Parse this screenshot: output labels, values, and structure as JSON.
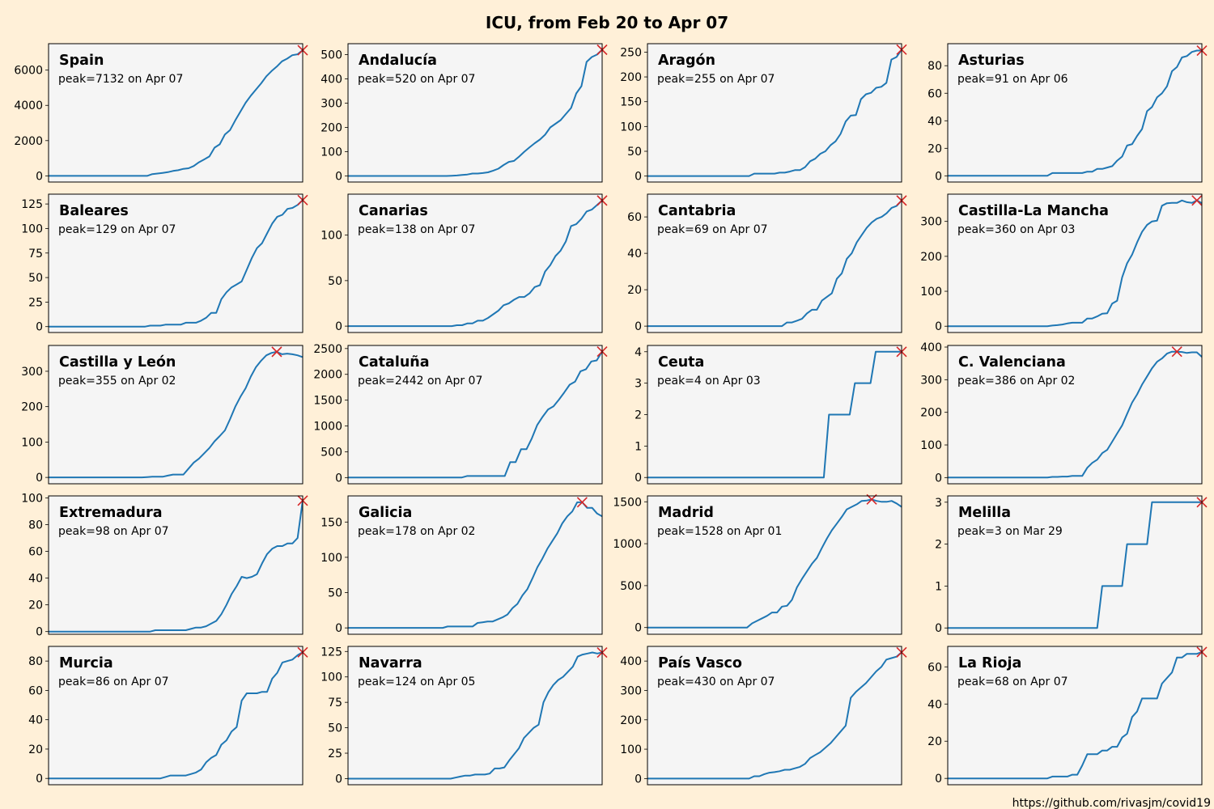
{
  "title": "ICU, from Feb 20 to Apr 07",
  "credit": "https://github.com/rivasjm/covid19",
  "colors": {
    "background": "#fff0d8",
    "axes_bg": "#f5f5f5",
    "line": "#1f77b4",
    "peak_marker": "#d62728"
  },
  "chart_data": [
    {
      "type": "line",
      "region": "Spain",
      "peak_label": "peak=7132 on Apr 07",
      "ylim": [
        -350,
        7500
      ],
      "yticks": [
        0,
        2000,
        4000,
        6000
      ],
      "values": [
        0,
        0,
        0,
        0,
        0,
        0,
        0,
        0,
        0,
        0,
        0,
        0,
        0,
        0,
        0,
        0,
        0,
        0,
        0,
        0,
        100,
        130,
        170,
        210,
        280,
        320,
        400,
        430,
        560,
        770,
        930,
        1100,
        1600,
        1790,
        2350,
        2600,
        3150,
        3650,
        4150,
        4550,
        4900,
        5250,
        5650,
        5950,
        6200,
        6500,
        6650,
        6850,
        6900,
        7132
      ]
    },
    {
      "type": "line",
      "region": "Andalucía",
      "peak_label": "peak=520 on Apr 07",
      "ylim": [
        -25,
        545
      ],
      "yticks": [
        0,
        100,
        200,
        300,
        400,
        500
      ],
      "values": [
        0,
        0,
        0,
        0,
        0,
        0,
        0,
        0,
        0,
        0,
        0,
        0,
        0,
        0,
        0,
        0,
        0,
        0,
        0,
        0,
        1,
        2,
        4,
        6,
        10,
        10,
        12,
        15,
        22,
        30,
        45,
        58,
        62,
        80,
        100,
        118,
        135,
        150,
        170,
        200,
        215,
        230,
        255,
        280,
        340,
        370,
        470,
        490,
        500,
        520
      ]
    },
    {
      "type": "line",
      "region": "Aragón",
      "peak_label": "peak=255 on Apr 07",
      "ylim": [
        -12,
        267
      ],
      "yticks": [
        0,
        50,
        100,
        150,
        200,
        250
      ],
      "values": [
        0,
        0,
        0,
        0,
        0,
        0,
        0,
        0,
        0,
        0,
        0,
        0,
        0,
        0,
        0,
        0,
        0,
        0,
        0,
        0,
        0,
        5,
        5,
        5,
        5,
        5,
        7,
        7,
        9,
        12,
        12,
        18,
        30,
        35,
        45,
        50,
        62,
        70,
        85,
        110,
        122,
        123,
        155,
        165,
        168,
        178,
        180,
        188,
        235,
        240,
        255
      ]
    },
    {
      "type": "line",
      "region": "Asturias",
      "peak_label": "peak=91 on Apr 06",
      "ylim": [
        -4.5,
        96
      ],
      "yticks": [
        0,
        20,
        40,
        60,
        80
      ],
      "values": [
        0,
        0,
        0,
        0,
        0,
        0,
        0,
        0,
        0,
        0,
        0,
        0,
        0,
        0,
        0,
        0,
        0,
        0,
        0,
        0,
        0,
        2,
        2,
        2,
        2,
        2,
        2,
        2,
        3,
        3,
        5,
        5,
        6,
        7,
        11,
        14,
        22,
        23,
        29,
        34,
        47,
        50,
        57,
        60,
        65,
        76,
        79,
        86,
        87,
        90,
        91,
        91
      ]
    },
    {
      "type": "line",
      "region": "Baleares",
      "peak_label": "peak=129 on Apr 07",
      "ylim": [
        -6,
        135
      ],
      "yticks": [
        0,
        25,
        50,
        75,
        100,
        125
      ],
      "values": [
        0,
        0,
        0,
        0,
        0,
        0,
        0,
        0,
        0,
        0,
        0,
        0,
        0,
        0,
        0,
        0,
        0,
        0,
        0,
        0,
        1,
        1,
        1,
        2,
        2,
        2,
        2,
        4,
        4,
        4,
        6,
        9,
        14,
        14,
        28,
        35,
        40,
        43,
        46,
        58,
        70,
        80,
        85,
        95,
        105,
        112,
        114,
        120,
        121,
        124,
        129
      ]
    },
    {
      "type": "line",
      "region": "Canarias",
      "peak_label": "peak=138 on Apr 07",
      "ylim": [
        -7,
        145
      ],
      "yticks": [
        0,
        50,
        100
      ],
      "values": [
        0,
        0,
        0,
        0,
        0,
        0,
        0,
        0,
        0,
        0,
        0,
        0,
        0,
        0,
        0,
        0,
        0,
        0,
        0,
        0,
        0,
        1,
        1,
        3,
        3,
        6,
        6,
        9,
        13,
        17,
        23,
        25,
        29,
        32,
        32,
        36,
        43,
        45,
        60,
        67,
        77,
        83,
        93,
        110,
        112,
        118,
        126,
        128,
        133,
        138
      ]
    },
    {
      "type": "line",
      "region": "Cantabria",
      "peak_label": "peak=69 on Apr 07",
      "ylim": [
        -3.5,
        72.5
      ],
      "yticks": [
        0,
        20,
        40,
        60
      ],
      "values": [
        0,
        0,
        0,
        0,
        0,
        0,
        0,
        0,
        0,
        0,
        0,
        0,
        0,
        0,
        0,
        0,
        0,
        0,
        0,
        0,
        0,
        0,
        0,
        0,
        0,
        0,
        0,
        0,
        2,
        2,
        3,
        4,
        7,
        9,
        9,
        14,
        16,
        18,
        26,
        29,
        37,
        40,
        46,
        50,
        54,
        57,
        59,
        60,
        62,
        65,
        66,
        69
      ]
    },
    {
      "type": "line",
      "region": "Castilla-La Mancha",
      "peak_label": "peak=360 on Apr 03",
      "ylim": [
        -18,
        378
      ],
      "yticks": [
        0,
        100,
        200,
        300
      ],
      "values": [
        0,
        0,
        0,
        0,
        0,
        0,
        0,
        0,
        0,
        0,
        0,
        0,
        0,
        0,
        0,
        0,
        0,
        0,
        0,
        0,
        0,
        2,
        3,
        5,
        8,
        10,
        10,
        10,
        22,
        22,
        28,
        36,
        37,
        65,
        73,
        140,
        180,
        205,
        240,
        270,
        290,
        300,
        302,
        345,
        352,
        353,
        353,
        360,
        355,
        353,
        360,
        352
      ]
    },
    {
      "type": "line",
      "region": "Castilla y León",
      "peak_label": "peak=355 on Apr 02",
      "ylim": [
        -18,
        373
      ],
      "yticks": [
        0,
        100,
        200,
        300
      ],
      "values": [
        0,
        0,
        0,
        0,
        0,
        0,
        0,
        0,
        0,
        0,
        0,
        0,
        0,
        0,
        0,
        0,
        0,
        0,
        0,
        1,
        2,
        2,
        2,
        5,
        8,
        8,
        8,
        25,
        42,
        53,
        68,
        83,
        102,
        117,
        133,
        165,
        200,
        228,
        252,
        285,
        312,
        330,
        345,
        352,
        355,
        348,
        350,
        348,
        345,
        340
      ]
    },
    {
      "type": "line",
      "region": "Cataluña",
      "peak_label": "peak=2442 on Apr 07",
      "ylim": [
        -120,
        2560
      ],
      "yticks": [
        0,
        500,
        1000,
        1500,
        2000,
        2500
      ],
      "values": [
        0,
        0,
        0,
        0,
        0,
        0,
        0,
        0,
        0,
        0,
        0,
        0,
        0,
        0,
        0,
        0,
        0,
        0,
        0,
        0,
        0,
        0,
        30,
        30,
        30,
        30,
        30,
        30,
        30,
        30,
        300,
        300,
        550,
        550,
        760,
        1020,
        1180,
        1320,
        1380,
        1510,
        1650,
        1800,
        1860,
        2060,
        2100,
        2250,
        2270,
        2442
      ]
    },
    {
      "type": "line",
      "region": "Ceuta",
      "peak_label": "peak=4 on Apr 03",
      "ylim": [
        -0.2,
        4.2
      ],
      "yticks": [
        0,
        1,
        2,
        3,
        4
      ],
      "values": [
        0,
        0,
        0,
        0,
        0,
        0,
        0,
        0,
        0,
        0,
        0,
        0,
        0,
        0,
        0,
        0,
        0,
        0,
        0,
        0,
        0,
        0,
        0,
        0,
        0,
        0,
        0,
        0,
        0,
        0,
        0,
        0,
        0,
        0,
        0,
        2,
        2,
        2,
        2,
        2,
        3,
        3,
        3,
        3,
        4,
        4,
        4,
        4,
        4,
        4
      ]
    },
    {
      "type": "line",
      "region": "C. Valenciana",
      "peak_label": "peak=386 on Apr 02",
      "ylim": [
        -19,
        405
      ],
      "yticks": [
        0,
        100,
        200,
        300,
        400
      ],
      "values": [
        0,
        0,
        0,
        0,
        0,
        0,
        0,
        0,
        0,
        0,
        0,
        0,
        0,
        0,
        0,
        0,
        0,
        0,
        0,
        0,
        0,
        2,
        2,
        3,
        3,
        5,
        5,
        5,
        30,
        45,
        55,
        75,
        85,
        110,
        135,
        160,
        195,
        230,
        255,
        285,
        310,
        335,
        355,
        365,
        380,
        386,
        386,
        385,
        382,
        384,
        384,
        370
      ]
    },
    {
      "type": "line",
      "region": "Extremadura",
      "peak_label": "peak=98 on Apr 07",
      "ylim": [
        -2,
        101.5
      ],
      "yticks": [
        0,
        20,
        40,
        60,
        80,
        100
      ],
      "values": [
        0,
        0,
        0,
        0,
        0,
        0,
        0,
        0,
        0,
        0,
        0,
        0,
        0,
        0,
        0,
        0,
        0,
        0,
        0,
        0,
        0,
        1,
        1,
        1,
        1,
        1,
        1,
        1,
        2,
        3,
        3,
        4,
        6,
        8,
        13,
        20,
        28,
        34,
        41,
        40,
        41,
        43,
        51,
        58,
        62,
        64,
        64,
        66,
        66,
        70,
        98
      ]
    },
    {
      "type": "line",
      "region": "Galicia",
      "peak_label": "peak=178 on Apr 02",
      "ylim": [
        -9,
        187
      ],
      "yticks": [
        0,
        50,
        100,
        150
      ],
      "values": [
        0,
        0,
        0,
        0,
        0,
        0,
        0,
        0,
        0,
        0,
        0,
        0,
        0,
        0,
        0,
        0,
        0,
        0,
        0,
        0,
        2,
        2,
        2,
        2,
        2,
        2,
        7,
        8,
        9,
        9,
        12,
        15,
        19,
        28,
        34,
        46,
        55,
        70,
        86,
        98,
        112,
        123,
        134,
        148,
        158,
        165,
        178,
        178,
        170,
        170,
        162,
        158
      ]
    },
    {
      "type": "line",
      "region": "Madrid",
      "peak_label": "peak=1528 on Apr 01",
      "ylim": [
        -80,
        1570
      ],
      "yticks": [
        0,
        500,
        1000,
        1500
      ],
      "values": [
        0,
        0,
        0,
        0,
        0,
        0,
        0,
        0,
        0,
        0,
        0,
        0,
        0,
        0,
        0,
        0,
        0,
        0,
        0,
        0,
        0,
        50,
        80,
        110,
        140,
        180,
        180,
        250,
        260,
        330,
        480,
        580,
        670,
        760,
        830,
        950,
        1060,
        1160,
        1240,
        1320,
        1410,
        1440,
        1470,
        1510,
        1515,
        1528,
        1510,
        1500,
        1500,
        1510,
        1480,
        1440
      ]
    },
    {
      "type": "line",
      "region": "Melilla",
      "peak_label": "peak=3 on Mar 29",
      "ylim": [
        -0.15,
        3.15
      ],
      "yticks": [
        0,
        1,
        2,
        3
      ],
      "values": [
        0,
        0,
        0,
        0,
        0,
        0,
        0,
        0,
        0,
        0,
        0,
        0,
        0,
        0,
        0,
        0,
        0,
        0,
        0,
        0,
        0,
        0,
        0,
        0,
        0,
        0,
        0,
        0,
        0,
        0,
        0,
        1,
        1,
        1,
        1,
        1,
        2,
        2,
        2,
        2,
        2,
        3,
        3,
        3,
        3,
        3,
        3,
        3,
        3,
        3,
        3,
        3
      ]
    },
    {
      "type": "line",
      "region": "Murcia",
      "peak_label": "peak=86 on Apr 07",
      "ylim": [
        -4.3,
        90
      ],
      "yticks": [
        0,
        20,
        40,
        60,
        80
      ],
      "values": [
        0,
        0,
        0,
        0,
        0,
        0,
        0,
        0,
        0,
        0,
        0,
        0,
        0,
        0,
        0,
        0,
        0,
        0,
        0,
        0,
        0,
        0,
        0,
        1,
        2,
        2,
        2,
        2,
        3,
        4,
        6,
        11,
        14,
        16,
        23,
        26,
        32,
        35,
        53,
        58,
        58,
        58,
        59,
        59,
        68,
        72,
        79,
        80,
        81,
        84,
        86
      ]
    },
    {
      "type": "line",
      "region": "Navarra",
      "peak_label": "peak=124 on Apr 05",
      "ylim": [
        -6,
        130
      ],
      "yticks": [
        0,
        25,
        50,
        75,
        100,
        125
      ],
      "values": [
        0,
        0,
        0,
        0,
        0,
        0,
        0,
        0,
        0,
        0,
        0,
        0,
        0,
        0,
        0,
        0,
        0,
        0,
        0,
        0,
        0,
        0,
        1,
        2,
        3,
        3,
        4,
        4,
        4,
        5,
        10,
        10,
        11,
        18,
        24,
        30,
        40,
        45,
        50,
        53,
        75,
        85,
        92,
        97,
        100,
        105,
        110,
        120,
        122,
        123,
        124,
        123,
        124
      ]
    },
    {
      "type": "line",
      "region": "País Vasco",
      "peak_label": "peak=430 on Apr 07",
      "ylim": [
        -21,
        450
      ],
      "yticks": [
        0,
        100,
        200,
        300,
        400
      ],
      "values": [
        0,
        0,
        0,
        0,
        0,
        0,
        0,
        0,
        0,
        0,
        0,
        0,
        0,
        0,
        0,
        0,
        0,
        0,
        0,
        0,
        0,
        8,
        8,
        15,
        20,
        22,
        25,
        30,
        30,
        35,
        40,
        50,
        70,
        80,
        90,
        105,
        120,
        140,
        160,
        180,
        275,
        295,
        310,
        325,
        345,
        365,
        380,
        405,
        410,
        415,
        430
      ]
    },
    {
      "type": "line",
      "region": "La Rioja",
      "peak_label": "peak=68 on Apr 07",
      "ylim": [
        -3.4,
        71
      ],
      "yticks": [
        0,
        20,
        40,
        60
      ],
      "values": [
        0,
        0,
        0,
        0,
        0,
        0,
        0,
        0,
        0,
        0,
        0,
        0,
        0,
        0,
        0,
        0,
        0,
        0,
        0,
        0,
        0,
        1,
        1,
        1,
        1,
        2,
        2,
        7,
        13,
        13,
        13,
        15,
        15,
        17,
        17,
        22,
        24,
        33,
        36,
        43,
        43,
        43,
        43,
        51,
        54,
        57,
        65,
        65,
        67,
        67,
        67,
        68
      ]
    }
  ]
}
